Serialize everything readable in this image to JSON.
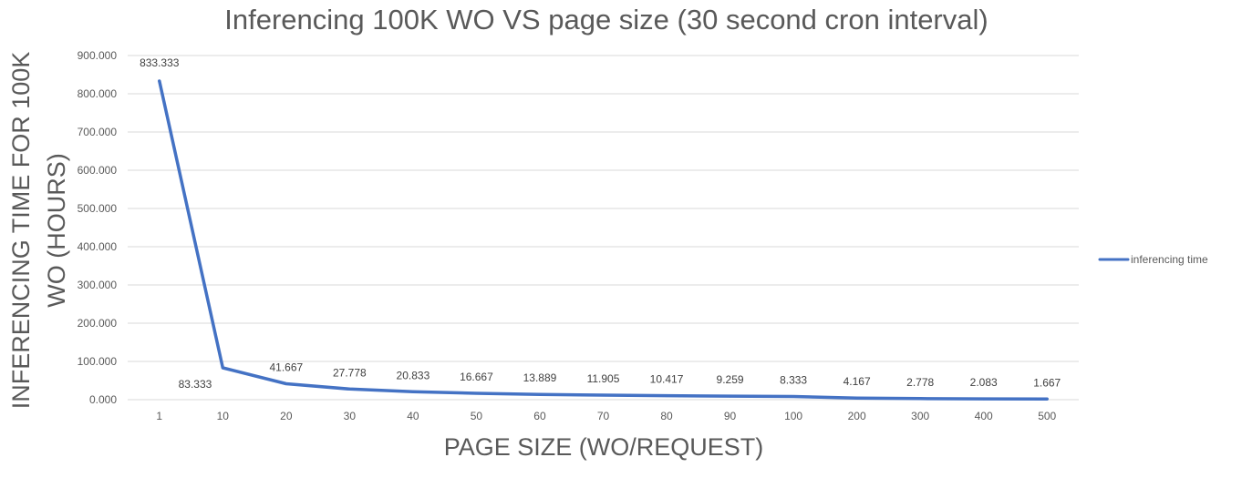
{
  "chart_data": {
    "type": "line",
    "title": "Inferencing 100K WO VS page size (30 second cron interval)",
    "xlabel": "PAGE SIZE (WO/REQUEST)",
    "ylabel_lines": [
      "INFERENCING TIME FOR 100K",
      "WO (HOURS)"
    ],
    "categories": [
      "1",
      "10",
      "20",
      "30",
      "40",
      "50",
      "60",
      "70",
      "80",
      "90",
      "100",
      "200",
      "300",
      "400",
      "500"
    ],
    "series": [
      {
        "name": "inferencing time",
        "color": "#4472c4",
        "values": [
          833.333,
          83.333,
          41.667,
          27.778,
          20.833,
          16.667,
          13.889,
          11.905,
          10.417,
          9.259,
          8.333,
          4.167,
          2.778,
          2.083,
          1.667
        ],
        "data_labels": [
          "833.333",
          "83.333",
          "41.667",
          "27.778",
          "20.833",
          "16.667",
          "13.889",
          "11.905",
          "10.417",
          "9.259",
          "8.333",
          "4.167",
          "2.778",
          "2.083",
          "1.667"
        ]
      }
    ],
    "ylim": [
      0,
      900
    ],
    "yticks": [
      0,
      100,
      200,
      300,
      400,
      500,
      600,
      700,
      800,
      900
    ],
    "ytick_labels": [
      "0.000",
      "100.000",
      "200.000",
      "300.000",
      "400.000",
      "500.000",
      "600.000",
      "700.000",
      "800.000",
      "900.000"
    ],
    "grid": true,
    "legend_position": "right"
  }
}
